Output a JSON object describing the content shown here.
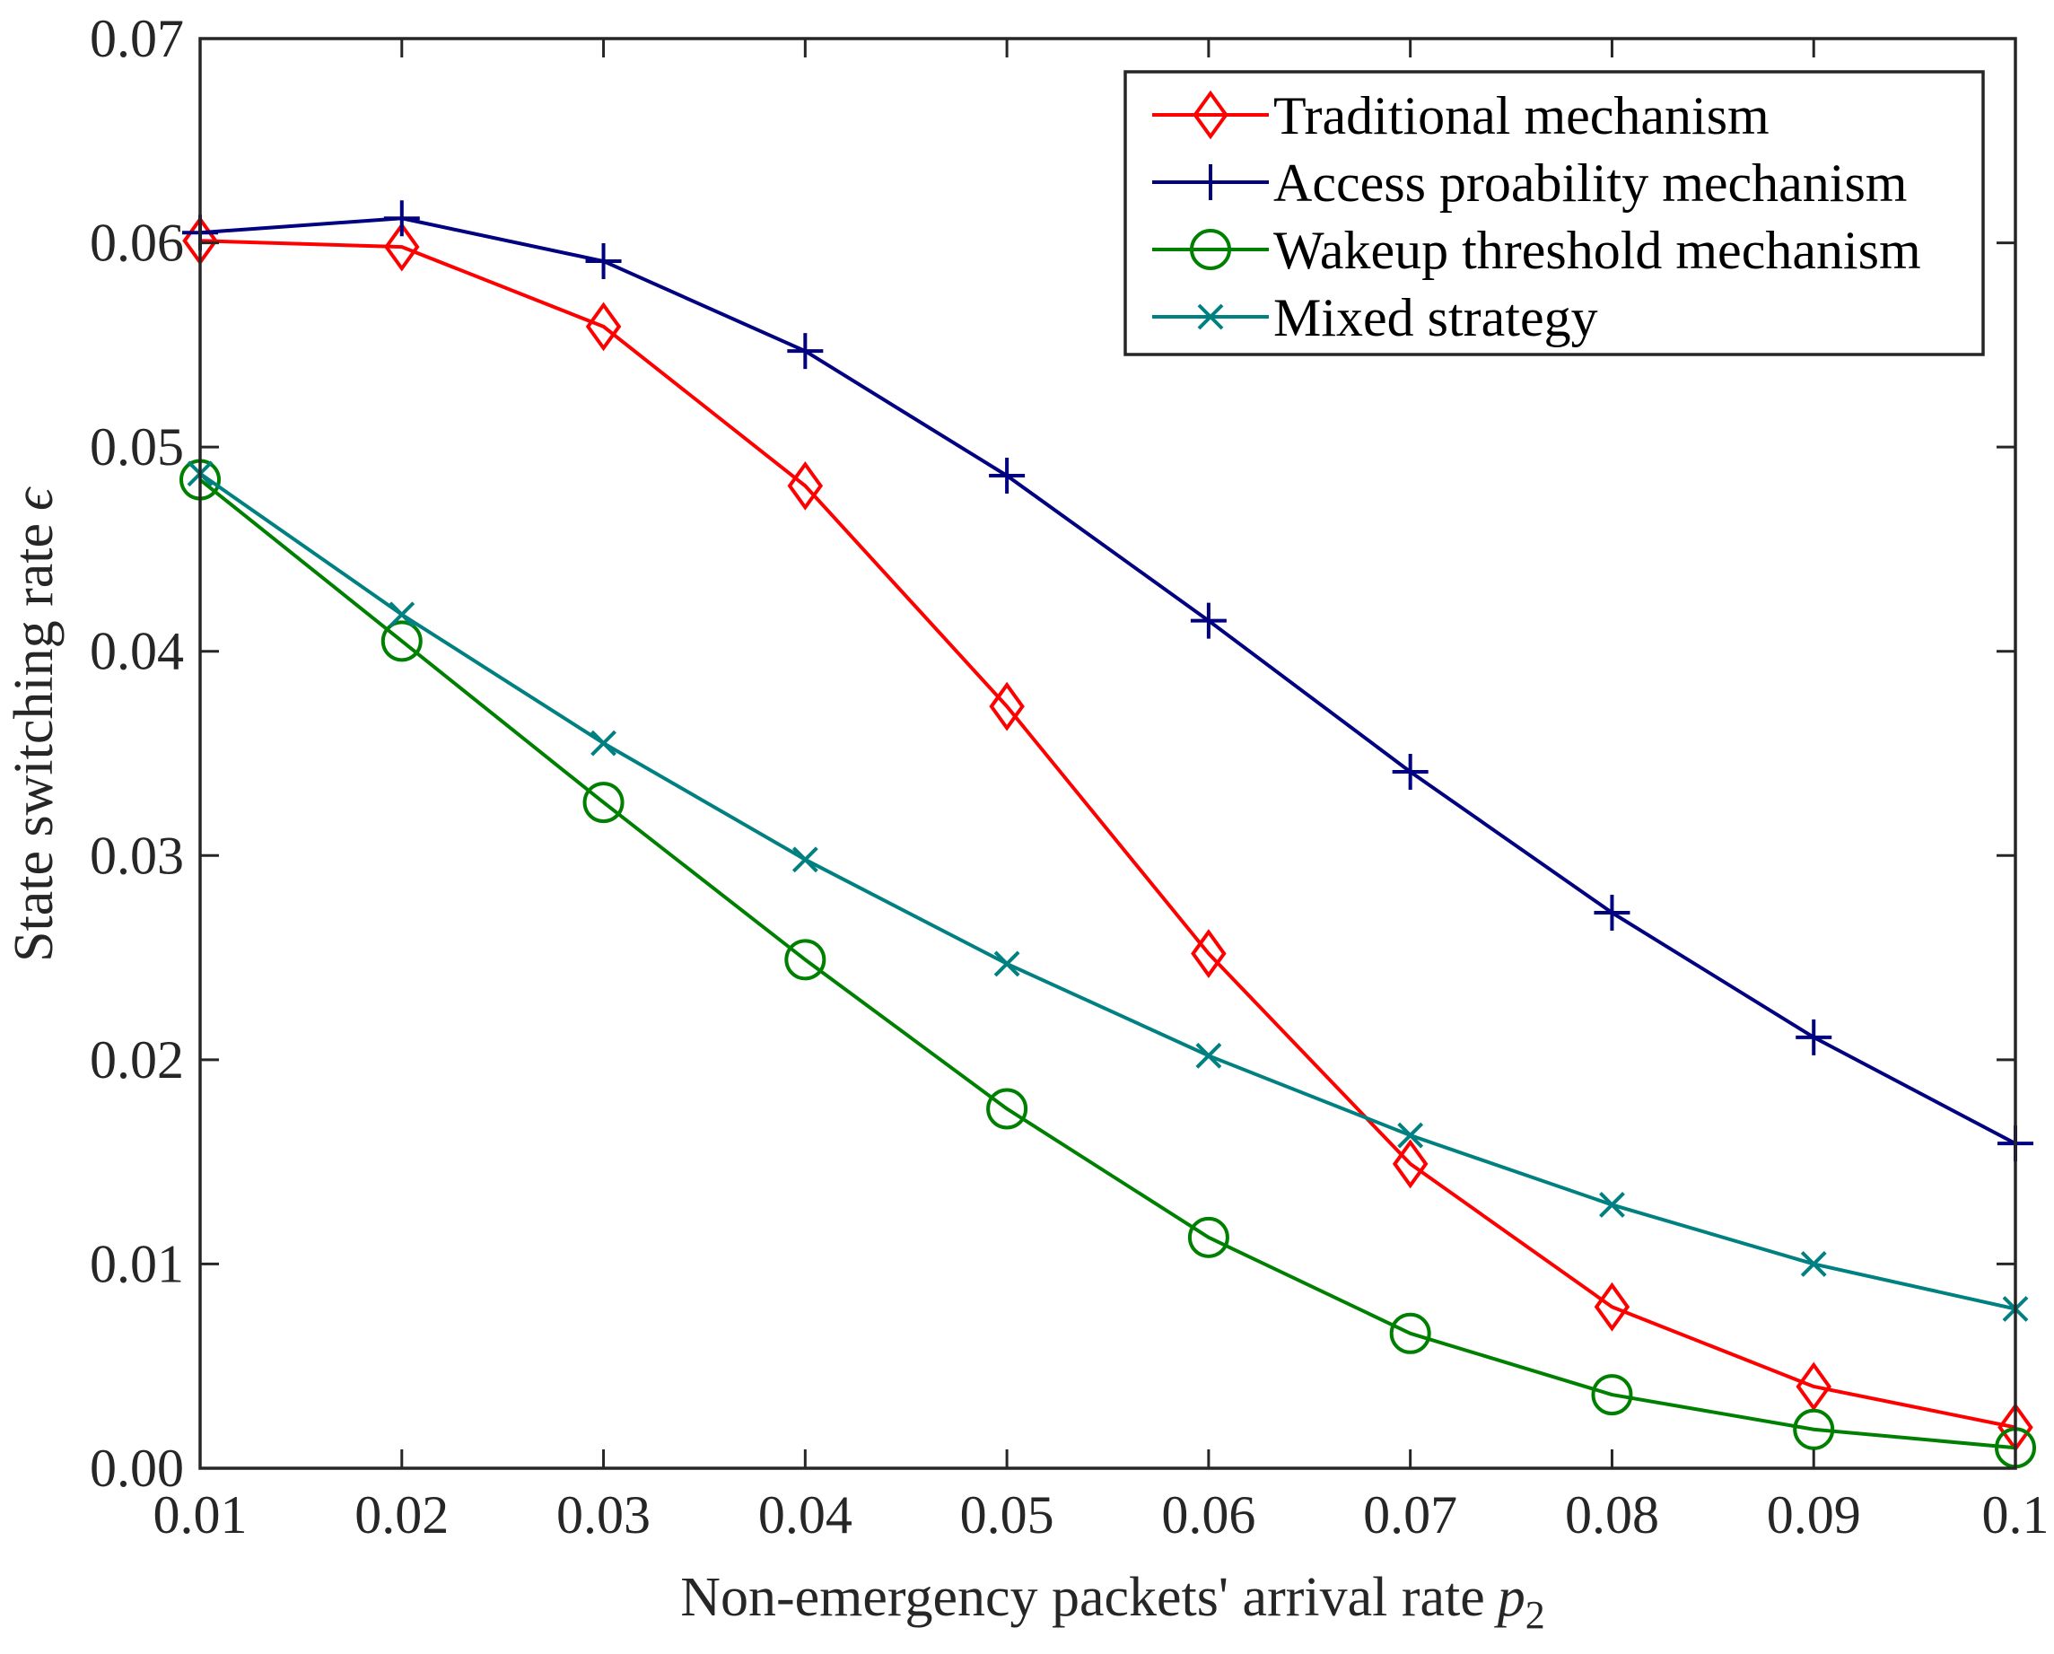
{
  "chart_data": {
    "type": "line",
    "title": "",
    "xlabel": "Non-emergency packets' arrival rate",
    "xlabel_symbol": "p",
    "xlabel_subscript": "2",
    "ylabel": "State switching rate",
    "ylabel_symbol": "ϵ",
    "x": [
      0.01,
      0.02,
      0.03,
      0.04,
      0.05,
      0.06,
      0.07,
      0.08,
      0.09,
      0.1
    ],
    "xlim": [
      0.01,
      0.1
    ],
    "ylim": [
      0.0,
      0.07
    ],
    "xticks": [
      0.01,
      0.02,
      0.03,
      0.04,
      0.05,
      0.06,
      0.07,
      0.08,
      0.09,
      0.1
    ],
    "xtick_labels": [
      "0.01",
      "0.02",
      "0.03",
      "0.04",
      "0.05",
      "0.06",
      "0.07",
      "0.08",
      "0.09",
      "0.1"
    ],
    "yticks": [
      0.0,
      0.01,
      0.02,
      0.03,
      0.04,
      0.05,
      0.06,
      0.07
    ],
    "ytick_labels": [
      "0.00",
      "0.01",
      "0.02",
      "0.03",
      "0.04",
      "0.05",
      "0.06",
      "0.07"
    ],
    "grid": false,
    "legend_position": "top-right",
    "series": [
      {
        "name": "Traditional mechanism",
        "color": "#ff0000",
        "marker": "diamond",
        "values": [
          0.0601,
          0.0598,
          0.0559,
          0.0481,
          0.0373,
          0.0252,
          0.0149,
          0.0079,
          0.004,
          0.002
        ]
      },
      {
        "name": "Access proability mechanism",
        "color": "#000080",
        "marker": "plus",
        "values": [
          0.0605,
          0.0612,
          0.0591,
          0.0547,
          0.0486,
          0.0415,
          0.0341,
          0.0272,
          0.0211,
          0.0159
        ]
      },
      {
        "name": "Wakeup threshold mechanism",
        "color": "#008000",
        "marker": "circle",
        "values": [
          0.0484,
          0.0405,
          0.0326,
          0.0249,
          0.0176,
          0.0113,
          0.0066,
          0.0036,
          0.0019,
          0.001
        ]
      },
      {
        "name": "Mixed strategy",
        "color": "#008080",
        "marker": "x",
        "values": [
          0.0487,
          0.0418,
          0.0355,
          0.0298,
          0.0247,
          0.0202,
          0.0163,
          0.0129,
          0.01,
          0.0078
        ]
      }
    ]
  }
}
